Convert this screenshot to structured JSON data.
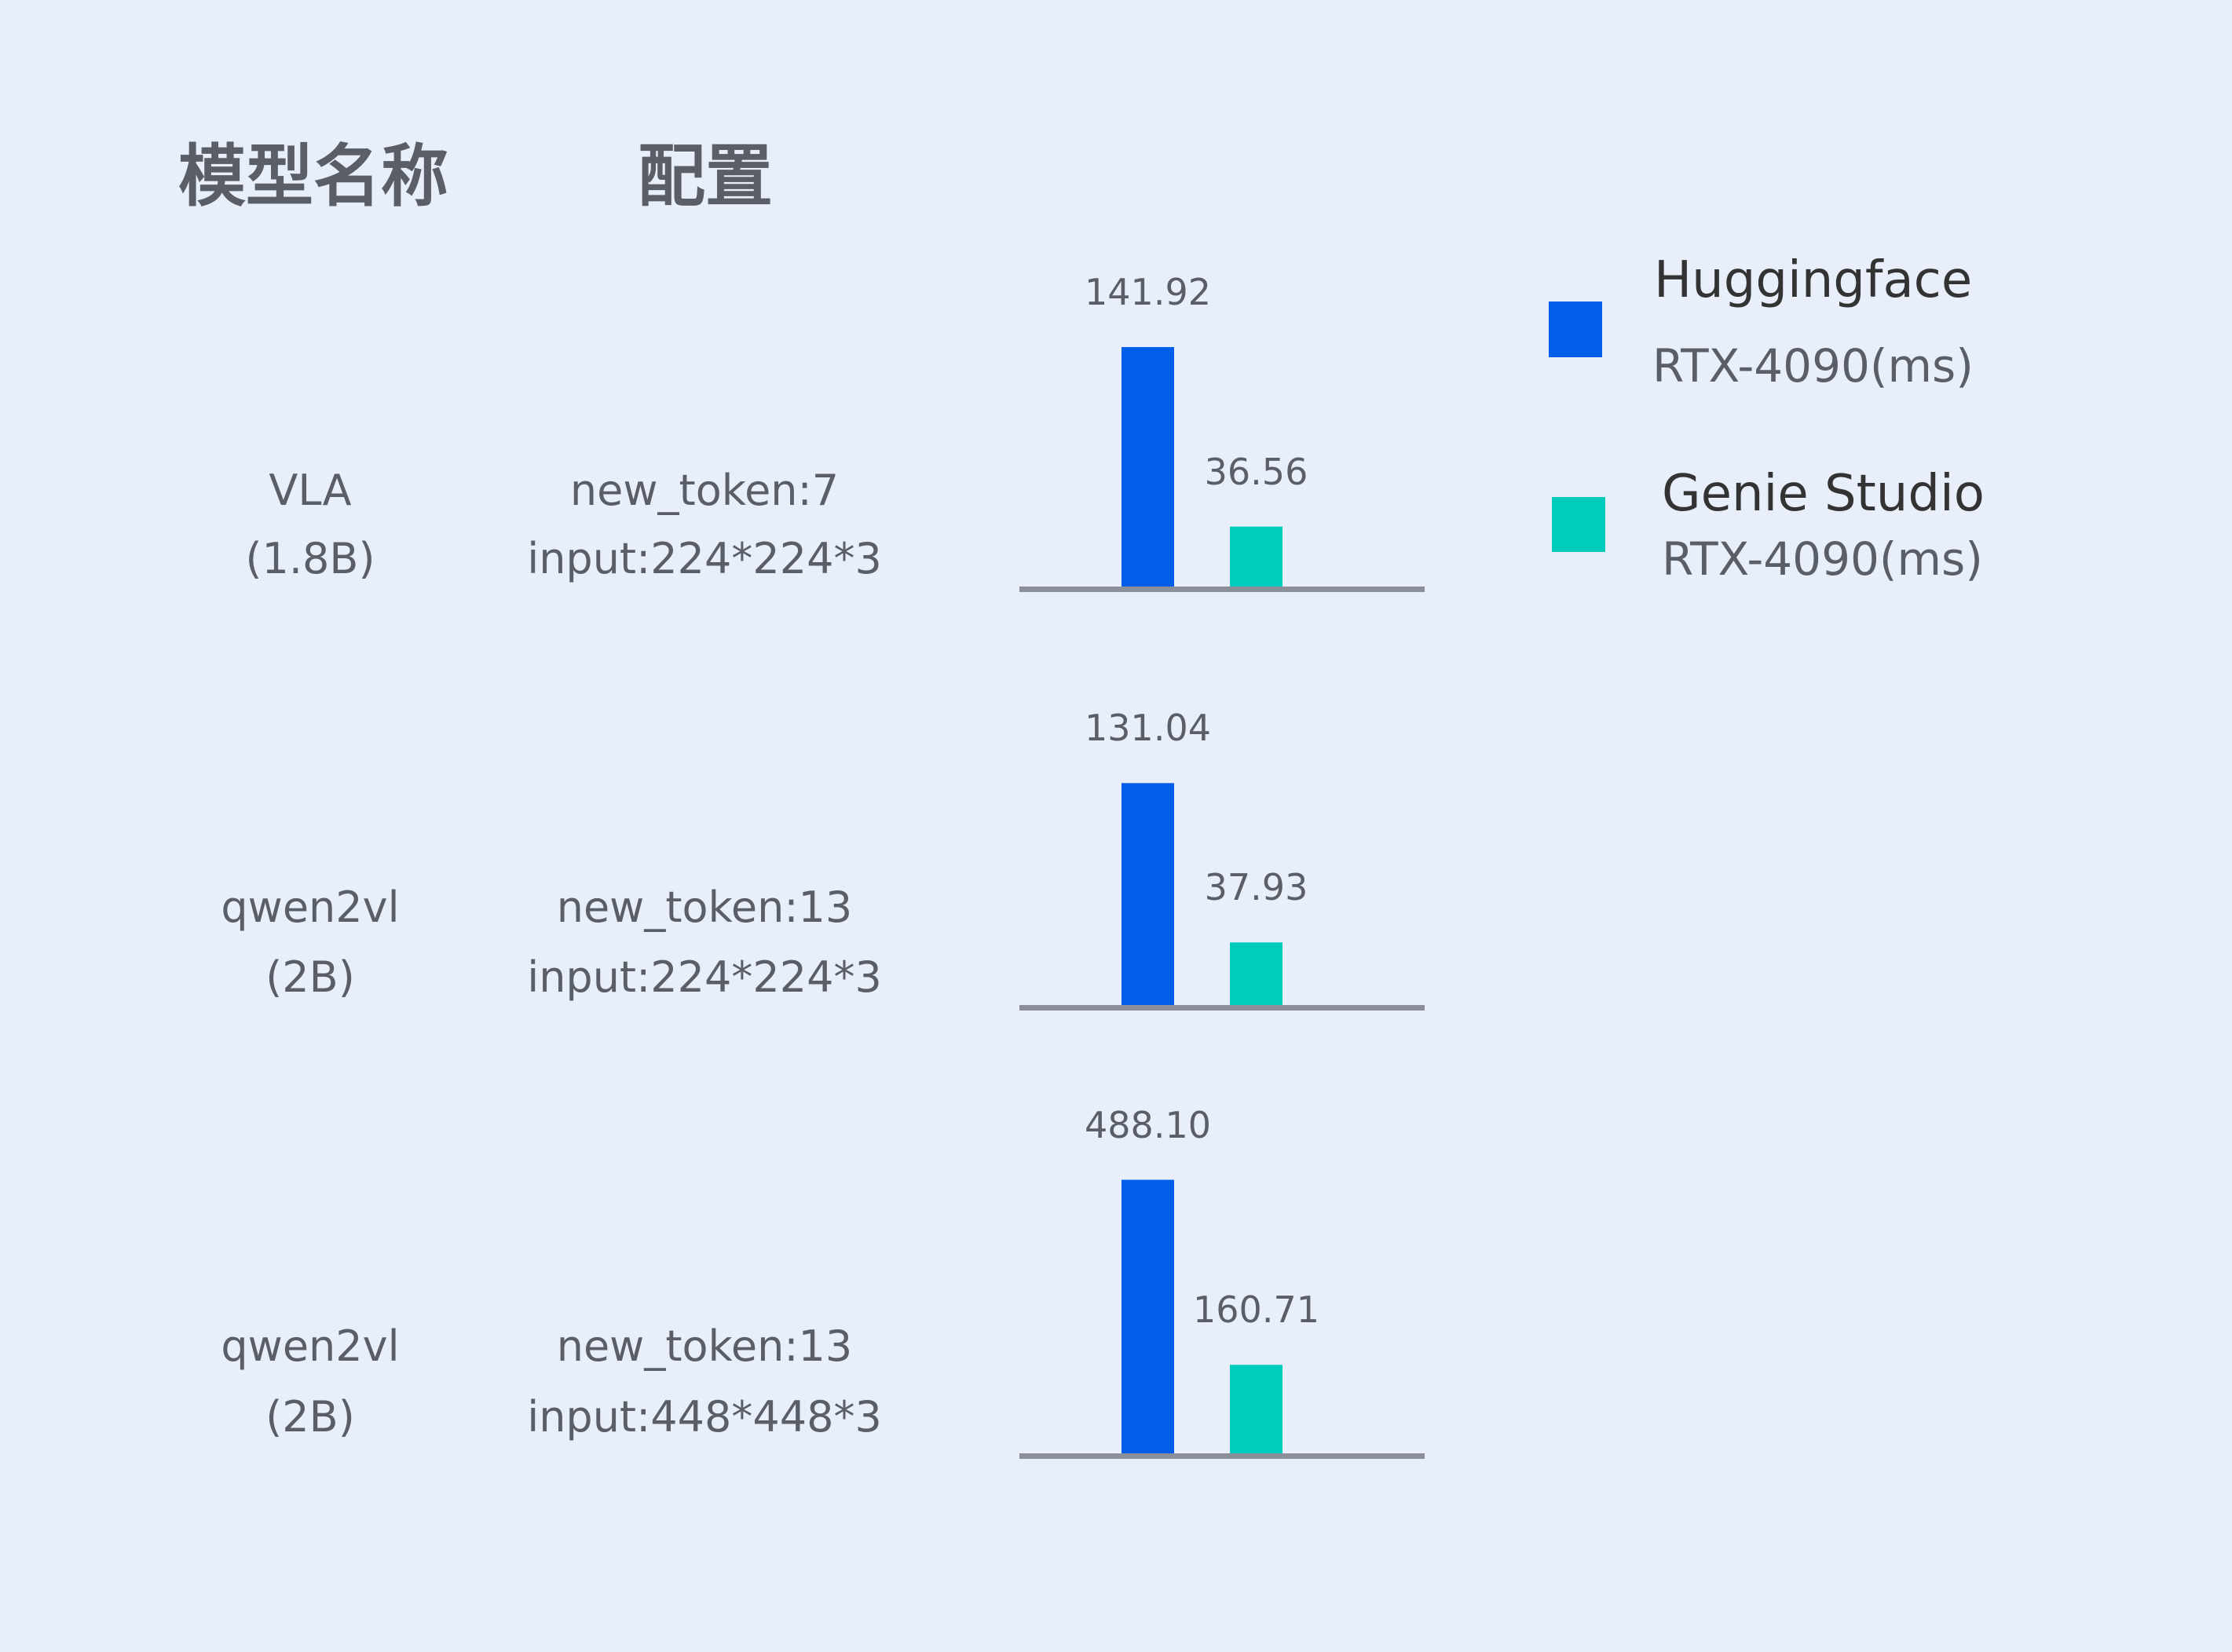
{
  "headers": {
    "model": "模型名称",
    "config": "配置"
  },
  "colors": {
    "background": "#E8EFFB",
    "huggingface": "#005EEB",
    "genie_studio": "#00CCBE",
    "baseline": "#8A8F99",
    "text": "#5A5E66"
  },
  "rows": [
    {
      "model": "VLA",
      "size": "(1.8B)",
      "config_line1": "new_token:7",
      "config_line2": "input:224*224*3"
    },
    {
      "model": "qwen2vl",
      "size": "(2B)",
      "config_line1": "new_token:13",
      "config_line2": "input:224*224*3"
    },
    {
      "model": "qwen2vl",
      "size": "(2B)",
      "config_line1": "new_token:13",
      "config_line2": "input:448*448*3"
    }
  ],
  "chart_data": {
    "type": "bar",
    "categories": [
      "VLA (1.8B)",
      "qwen2vl (2B)",
      "qwen2vl (2B)"
    ],
    "series": [
      {
        "name": "Huggingface RTX-4090(ms)",
        "values": [
          141.92,
          131.04,
          488.1
        ],
        "labels": [
          "141.92",
          "131.04",
          "488.10"
        ]
      },
      {
        "name": "Genie Studio RTX-4090(ms)",
        "values": [
          36.56,
          37.93,
          160.71
        ],
        "labels": [
          "36.56",
          "37.93",
          "160.71"
        ]
      }
    ],
    "legend": {
      "position": "right",
      "items": [
        {
          "title": "Huggingface",
          "subtitle": "RTX-4090(ms)"
        },
        {
          "title": "Genie Studio",
          "subtitle": "RTX-4090(ms)"
        }
      ]
    },
    "grid": false
  }
}
